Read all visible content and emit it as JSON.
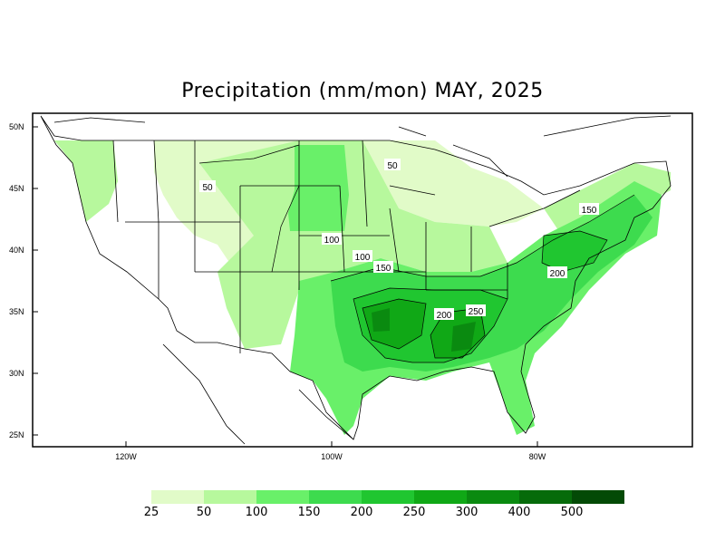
{
  "map": {
    "title": "Precipitation (mm/mon) MAY, 2025",
    "lat_labels": [
      "50N",
      "45N",
      "40N",
      "35N",
      "30N",
      "25N"
    ],
    "lon_labels": [
      "120W",
      "100W",
      "80W"
    ],
    "contour_labels": [
      "50",
      "50",
      "100",
      "100",
      "150",
      "200",
      "250",
      "150",
      "200"
    ],
    "legend": {
      "labels": [
        "25",
        "50",
        "100",
        "150",
        "200",
        "250",
        "300",
        "400",
        "500"
      ],
      "colors": [
        "#e1fbc8",
        "#b7f89d",
        "#69f069",
        "#3ddb4e",
        "#20c630",
        "#10a816",
        "#0a8a10",
        "#066b0a",
        "#034a06"
      ]
    }
  }
}
